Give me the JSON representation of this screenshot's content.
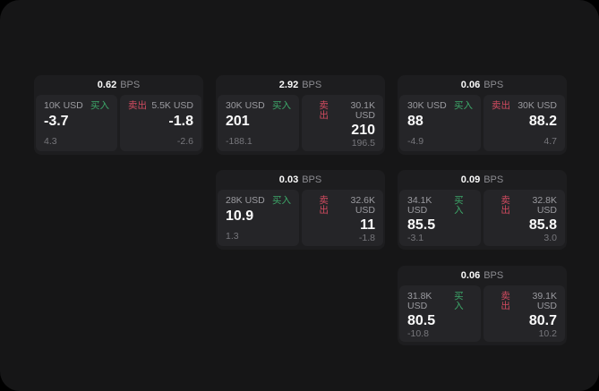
{
  "labels": {
    "buy": "买入",
    "sell": "卖出",
    "bps_unit": "BPS"
  },
  "colors": {
    "outer_background": "#000000",
    "surface": "#161617",
    "card": "#1d1d1f",
    "panel": "#252528",
    "buy_green": "#3da869",
    "sell_red": "#d14b60",
    "primary_text": "#fafafa",
    "muted_text": "#9b9ba0",
    "dim_text": "#77777c"
  },
  "cards": [
    {
      "bps": "0.62",
      "buy": {
        "amount": "10K USD",
        "price": "-3.7",
        "delta": "4.3"
      },
      "sell": {
        "amount": "5.5K USD",
        "price": "-1.8",
        "delta": "-2.6"
      }
    },
    {
      "bps": "2.92",
      "buy": {
        "amount": "30K USD",
        "price": "201",
        "delta": "-188.1"
      },
      "sell": {
        "amount": "30.1K USD",
        "price": "210",
        "delta": "196.5"
      }
    },
    {
      "bps": "0.06",
      "buy": {
        "amount": "30K USD",
        "price": "88",
        "delta": "-4.9"
      },
      "sell": {
        "amount": "30K USD",
        "price": "88.2",
        "delta": "4.7"
      }
    },
    {
      "bps": "0.03",
      "buy": {
        "amount": "28K USD",
        "price": "10.9",
        "delta": "1.3"
      },
      "sell": {
        "amount": "32.6K USD",
        "price": "11",
        "delta": "-1.8"
      }
    },
    {
      "bps": "0.09",
      "buy": {
        "amount": "34.1K USD",
        "price": "85.5",
        "delta": "-3.1"
      },
      "sell": {
        "amount": "32.8K USD",
        "price": "85.8",
        "delta": "3.0"
      }
    },
    {
      "bps": "0.06",
      "buy": {
        "amount": "31.8K USD",
        "price": "80.5",
        "delta": "-10.8"
      },
      "sell": {
        "amount": "39.1K USD",
        "price": "80.7",
        "delta": "10.2"
      }
    }
  ]
}
